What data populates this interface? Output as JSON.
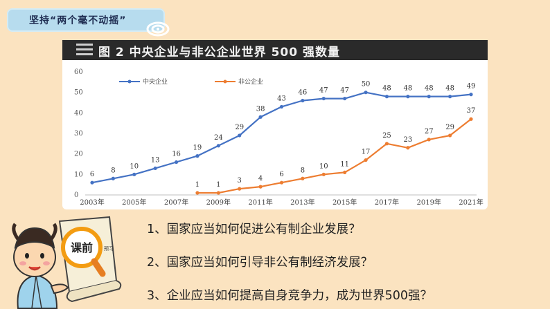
{
  "title_tag": {
    "text": "坚持“两个毫不动摇”"
  },
  "chart_data": {
    "type": "line",
    "title": "图 2  中央企业与非公企业世界 500 强数量",
    "years": [
      2003,
      2004,
      2005,
      2006,
      2007,
      2008,
      2009,
      2010,
      2011,
      2012,
      2013,
      2014,
      2015,
      2016,
      2017,
      2018,
      2019,
      2020,
      2021
    ],
    "x_tick_labels": [
      "2003年",
      "2005年",
      "2007年",
      "2009年",
      "2011年",
      "2013年",
      "2015年",
      "2017年",
      "2019年",
      "2021年"
    ],
    "y_ticks": [
      0,
      10,
      20,
      30,
      40,
      50,
      60
    ],
    "ylim": [
      0,
      60
    ],
    "legend_position": "top-left",
    "series": [
      {
        "name": "中央企业",
        "color": "#4472c4",
        "values": [
          6,
          8,
          10,
          13,
          16,
          19,
          24,
          29,
          38,
          43,
          46,
          47,
          47,
          50,
          48,
          48,
          48,
          48,
          49
        ]
      },
      {
        "name": "非公企业",
        "color": "#ed7d31",
        "values": [
          null,
          null,
          null,
          null,
          null,
          1,
          1,
          3,
          4,
          6,
          8,
          10,
          11,
          17,
          25,
          23,
          27,
          29,
          37
        ]
      }
    ]
  },
  "questions": [
    "1、国家应当如何促进公有制企业发展？",
    "2、国家应当如何引导非公有制经济发展？",
    "3、企业应当如何提高自身竞争力，成为世界500强？"
  ],
  "badge": {
    "main": "课前",
    "sub": "预习"
  },
  "colors": {
    "background": "#fbe3c0",
    "tag": "#b7dcee",
    "header": "#2a2a2a"
  }
}
